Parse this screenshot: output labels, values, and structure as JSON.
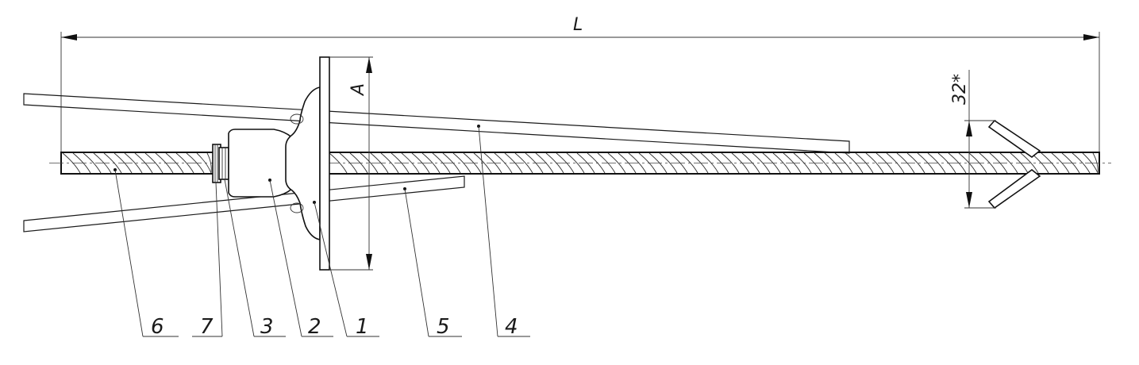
{
  "dimensions": {
    "length_label": "L",
    "plate_label": "A",
    "spread_label": "32*"
  },
  "parts": [
    {
      "number": "6"
    },
    {
      "number": "7"
    },
    {
      "number": "3"
    },
    {
      "number": "2"
    },
    {
      "number": "1"
    },
    {
      "number": "5"
    },
    {
      "number": "4"
    }
  ]
}
